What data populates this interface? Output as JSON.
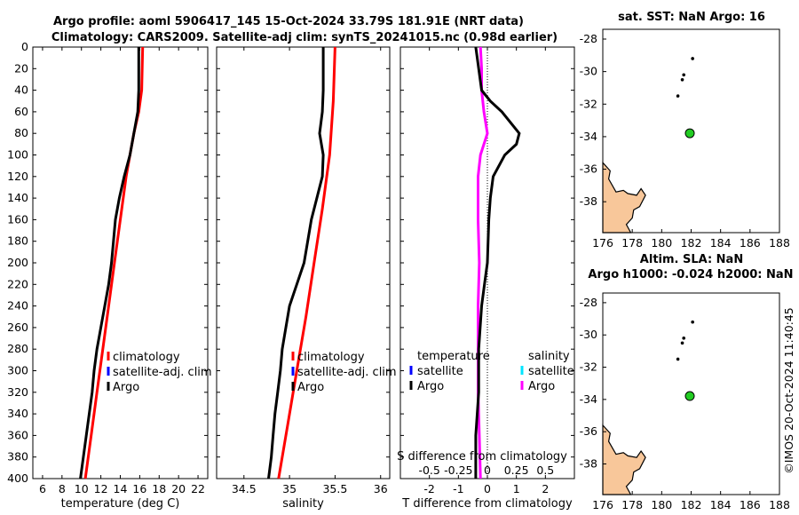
{
  "title": {
    "line1": "Argo profile: aoml 5906417_145 15-Oct-2024 33.79S 181.91E (NRT data)",
    "line2": "Climatology: CARS2009. Satellite-adj clim: synTS_20241015.nc (0.98d earlier)"
  },
  "stamp": "©IMOS 20-Oct-2024 11:40:45",
  "colors": {
    "climatology": "#ff0000",
    "satellite": "#0000ff",
    "satellite_s": "#00e5ff",
    "argo": "#000000",
    "argo_s": "#ff00ff",
    "land": "#f8c79a",
    "float": "#22cc22"
  },
  "chart_data": [
    {
      "type": "line",
      "name": "temperature-profile",
      "xlabel": "temperature (deg C)",
      "xlim": [
        5,
        23
      ],
      "xticks": [
        6,
        8,
        10,
        12,
        14,
        16,
        18,
        20,
        22
      ],
      "ylim": [
        0,
        400
      ],
      "yticks": [
        0,
        20,
        40,
        60,
        80,
        100,
        120,
        140,
        160,
        180,
        200,
        220,
        240,
        260,
        280,
        300,
        320,
        340,
        360,
        380,
        400
      ],
      "y_reversed": true,
      "legend": {
        "position": "bottom-center",
        "items": [
          "climatology",
          "satellite-adj. clim",
          "Argo"
        ]
      },
      "series": [
        {
          "name": "climatology",
          "depth": [
            0,
            40,
            60,
            80,
            100,
            120,
            160,
            200,
            240,
            280,
            320,
            360,
            400
          ],
          "values": [
            16.3,
            16.2,
            15.9,
            15.4,
            15.0,
            14.6,
            14.0,
            13.4,
            12.8,
            12.2,
            11.6,
            11.0,
            10.4
          ]
        },
        {
          "name": "Argo",
          "depth": [
            0,
            20,
            40,
            60,
            80,
            100,
            120,
            140,
            160,
            180,
            200,
            220,
            240,
            260,
            280,
            300,
            320,
            340,
            360,
            380,
            400
          ],
          "values": [
            15.9,
            15.9,
            15.9,
            15.8,
            15.4,
            15.0,
            14.4,
            13.9,
            13.5,
            13.3,
            13.1,
            12.8,
            12.4,
            12.0,
            11.6,
            11.3,
            11.1,
            10.8,
            10.5,
            10.2,
            9.9
          ]
        }
      ]
    },
    {
      "type": "line",
      "name": "salinity-profile",
      "xlabel": "salinity",
      "xlim": [
        34.2,
        36.1
      ],
      "xticks": [
        34.5,
        35,
        35.5,
        36
      ],
      "ylim": [
        0,
        400
      ],
      "y_reversed": true,
      "legend": {
        "position": "bottom-center",
        "items": [
          "climatology",
          "satellite-adj. clim",
          "Argo"
        ]
      },
      "series": [
        {
          "name": "climatology",
          "depth": [
            0,
            50,
            100,
            150,
            200,
            250,
            300,
            350,
            400
          ],
          "values": [
            35.5,
            35.48,
            35.44,
            35.36,
            35.27,
            35.18,
            35.08,
            34.98,
            34.88
          ]
        },
        {
          "name": "Argo",
          "depth": [
            0,
            20,
            40,
            60,
            80,
            100,
            120,
            140,
            160,
            180,
            200,
            220,
            240,
            260,
            280,
            300,
            320,
            340,
            360,
            380,
            400
          ],
          "values": [
            35.37,
            35.37,
            35.37,
            35.36,
            35.33,
            35.37,
            35.36,
            35.3,
            35.24,
            35.2,
            35.16,
            35.08,
            35.0,
            34.96,
            34.92,
            34.9,
            34.87,
            34.84,
            34.82,
            34.8,
            34.77
          ]
        }
      ]
    },
    {
      "type": "line",
      "name": "difference-profile",
      "xlabel": "T difference from climatology",
      "xlim": [
        -3,
        3
      ],
      "xticks": [
        -2,
        -1,
        0,
        1,
        2
      ],
      "xlabel_top": "S difference from climatology",
      "xticks_top": [
        -0.5,
        -0.25,
        0,
        0.25,
        0.5
      ],
      "ylim": [
        0,
        400
      ],
      "y_reversed": true,
      "legend": {
        "position": "bottom",
        "temperature_header": "temperature",
        "salinity_header": "salinity",
        "items": [
          "satellite",
          "Argo",
          "satellite",
          "Argo"
        ]
      },
      "series": [
        {
          "name": "T difference Argo",
          "depth": [
            0,
            20,
            40,
            50,
            60,
            70,
            80,
            90,
            100,
            120,
            140,
            160,
            200,
            220,
            240,
            280,
            320,
            360,
            400
          ],
          "values": [
            -0.4,
            -0.3,
            -0.2,
            0.1,
            0.5,
            0.8,
            1.1,
            1.0,
            0.6,
            0.2,
            0.1,
            0.05,
            0.0,
            -0.1,
            -0.2,
            -0.3,
            -0.3,
            -0.4,
            -0.4
          ]
        },
        {
          "name": "S difference Argo",
          "depth": [
            0,
            20,
            40,
            60,
            80,
            100,
            120,
            160,
            200,
            240,
            280,
            320,
            360,
            400
          ],
          "values": [
            -0.06,
            -0.05,
            -0.05,
            -0.03,
            0.0,
            -0.06,
            -0.08,
            -0.08,
            -0.07,
            -0.08,
            -0.08,
            -0.08,
            -0.07,
            -0.06
          ]
        }
      ]
    }
  ],
  "maps": [
    {
      "name": "sst-map",
      "title": "sat. SST: NaN Argo: 16",
      "xlim": [
        176,
        188
      ],
      "ylim": [
        -39.9,
        -27.4
      ],
      "xticks": [
        176,
        178,
        180,
        182,
        184,
        186,
        188
      ],
      "yticks": [
        -28,
        -30,
        -32,
        -34,
        -36,
        -38
      ],
      "track": [
        [
          181.1,
          -31.5
        ],
        [
          181.4,
          -30.5
        ],
        [
          181.5,
          -30.2
        ],
        [
          182.1,
          -29.2
        ]
      ],
      "float": [
        181.91,
        -33.79
      ]
    },
    {
      "name": "sla-map",
      "title": "Altim. SLA: NaN",
      "subtitle": "Argo h1000: -0.024 h2000: NaN",
      "xlim": [
        176,
        188
      ],
      "ylim": [
        -39.9,
        -27.4
      ],
      "xticks": [
        176,
        178,
        180,
        182,
        184,
        186,
        188
      ],
      "yticks": [
        -28,
        -30,
        -32,
        -34,
        -36,
        -38
      ],
      "track": [
        [
          181.1,
          -31.5
        ],
        [
          181.4,
          -30.5
        ],
        [
          181.5,
          -30.2
        ],
        [
          182.1,
          -29.2
        ]
      ],
      "float": [
        181.91,
        -33.79
      ]
    }
  ]
}
